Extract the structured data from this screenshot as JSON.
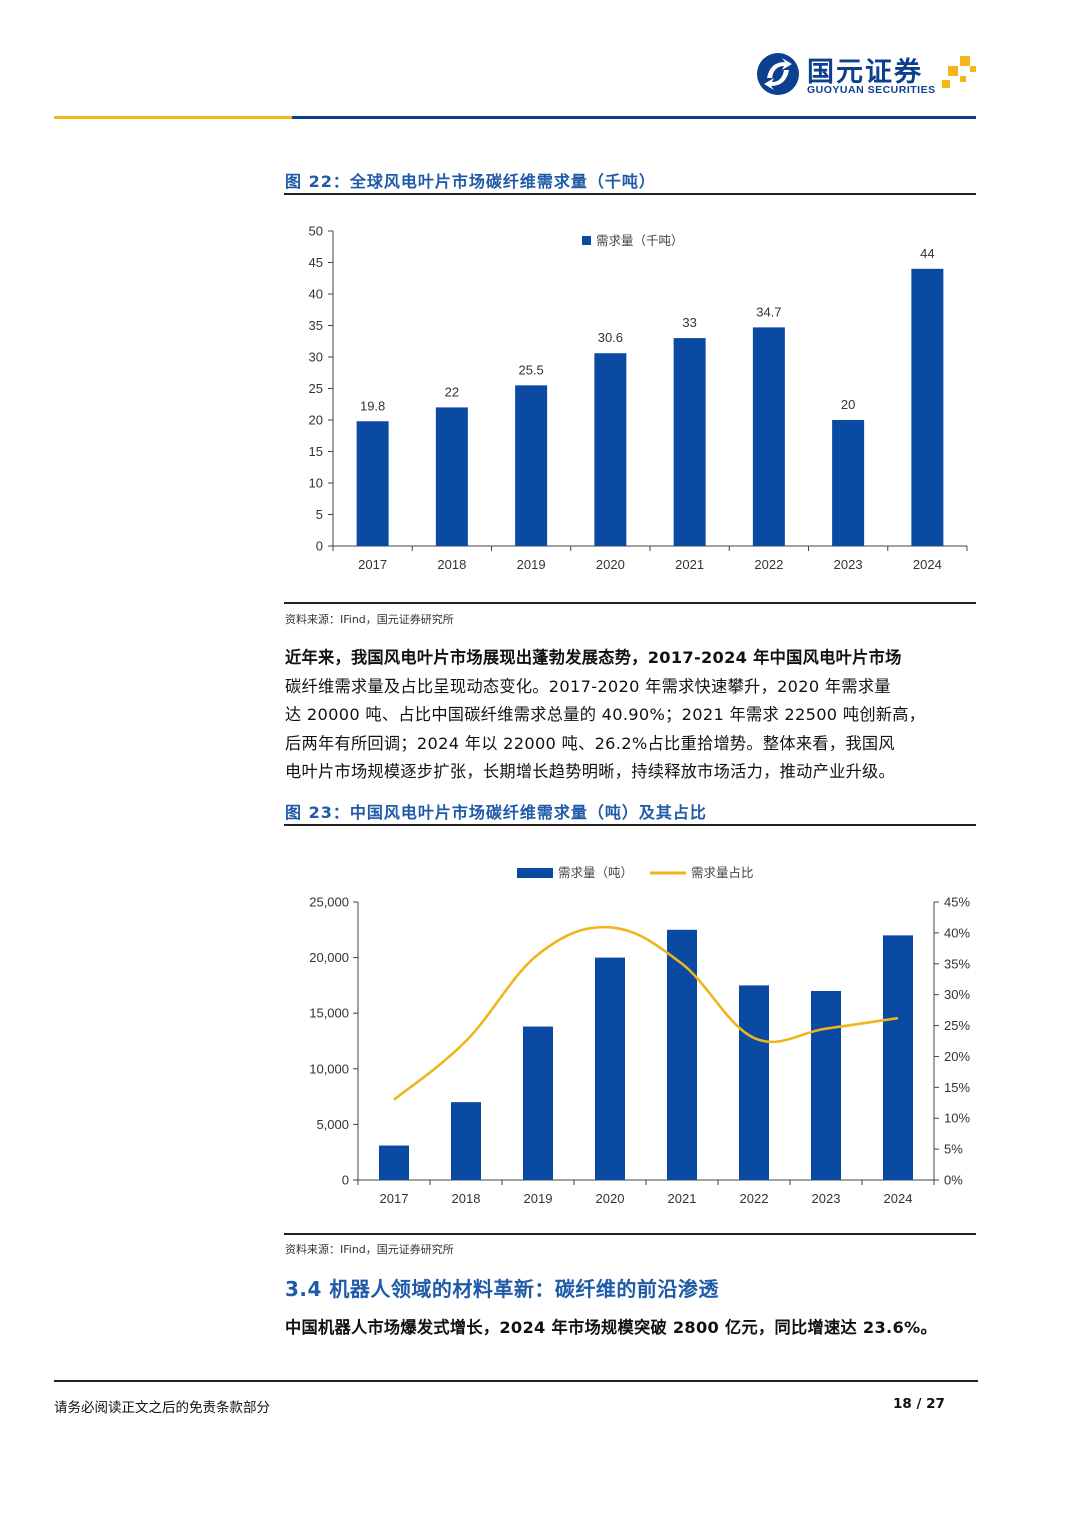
{
  "header": {
    "brand_cn": "国元证券",
    "brand_en": "GUOYUAN SECURITIES",
    "colors": {
      "brand_blue": "#0d3f8f",
      "accent_gold": "#f3b61b"
    }
  },
  "figure22": {
    "title": "图 22：全球风电叶片市场碳纤维需求量（千吨）",
    "source": "资料来源：IFind，国元证券研究所"
  },
  "figure23": {
    "title": "图 23：中国风电叶片市场碳纤维需求量（吨）及其占比",
    "source": "资料来源：IFind，国元证券研究所"
  },
  "body": {
    "para1_lines": [
      "近年来，我国风电叶片市场展现出蓬勃发展态势，2017-2024 年中国风电叶片市场",
      "碳纤维需求量及占比呈现动态变化。2017-2020 年需求快速攀升，2020 年需求量",
      "达 20000 吨、占比中国碳纤维需求总量的 40.90%；2021 年需求 22500 吨创新高，",
      "后两年有所回调；2024 年以 22000 吨、26.2%占比重拾增势。整体来看，我国风",
      "电叶片市场规模逐步扩张，长期增长趋势明晰，持续释放市场活力，推动产业升级。"
    ],
    "section_title": "3.4 机器人领域的材料革新：碳纤维的前沿渗透",
    "para2": "中国机器人市场爆发式增长，2024 年市场规模突破 2800 亿元，同比增速达 23.6%。"
  },
  "footer": {
    "disclaimer": "请务必阅读正文之后的免责条款部分",
    "page": "18 / 27"
  },
  "chart_data": [
    {
      "type": "bar",
      "title": "",
      "categories": [
        "2017",
        "2018",
        "2019",
        "2020",
        "2021",
        "2022",
        "2023",
        "2024"
      ],
      "series": [
        {
          "name": "需求量（千吨）",
          "values": [
            19.8,
            22,
            25.5,
            30.6,
            33,
            34.7,
            20,
            44
          ],
          "color": "#0b4aa2"
        }
      ],
      "data_labels": [
        "19.8",
        "22",
        "25.5",
        "30.6",
        "33",
        "34.7",
        "20",
        "44"
      ],
      "ylim": [
        0,
        50
      ],
      "yticks": [
        "0",
        "5",
        "10",
        "15",
        "20",
        "25",
        "30",
        "35",
        "40",
        "45",
        "50"
      ],
      "legend_position": "top-center",
      "grid": false
    },
    {
      "type": "bar",
      "title": "",
      "categories": [
        "2017",
        "2018",
        "2019",
        "2020",
        "2021",
        "2022",
        "2023",
        "2024"
      ],
      "series": [
        {
          "name": "需求量（吨）",
          "type": "bar",
          "axis": "left",
          "values": [
            3100,
            7000,
            13800,
            20000,
            22500,
            17500,
            17000,
            22000
          ],
          "color": "#0b4aa2"
        },
        {
          "name": "需求量占比",
          "type": "line",
          "axis": "right",
          "values": [
            13,
            22.5,
            36.5,
            40.9,
            35,
            23,
            24.5,
            26.2
          ],
          "color": "#f0b41c"
        }
      ],
      "ylim_left": [
        0,
        25000
      ],
      "yticks_left": [
        "0",
        "5,000",
        "10,000",
        "15,000",
        "20,000",
        "25,000"
      ],
      "ylim_right": [
        0,
        45
      ],
      "yticks_right": [
        "0%",
        "5%",
        "10%",
        "15%",
        "20%",
        "25%",
        "30%",
        "35%",
        "40%",
        "45%"
      ],
      "legend_position": "top-center",
      "grid": false
    }
  ]
}
